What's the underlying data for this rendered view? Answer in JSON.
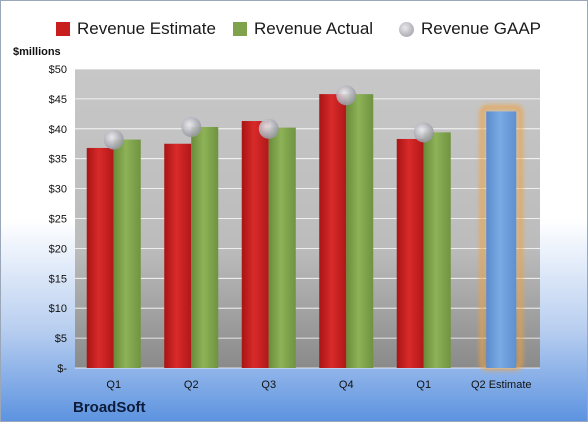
{
  "chart_data": {
    "type": "bar",
    "title": "",
    "ylabel": "$millions",
    "xlabel": "",
    "ylim": [
      0,
      50
    ],
    "y_ticks": [
      "$-",
      "$5",
      "$10",
      "$15",
      "$20",
      "$25",
      "$30",
      "$35",
      "$40",
      "$45",
      "$50"
    ],
    "categories": [
      "Q1",
      "Q2",
      "Q3",
      "Q4",
      "Q1",
      "Q2 Estimate"
    ],
    "series": [
      {
        "name": "Revenue Estimate",
        "type": "bar",
        "color": "#c81e1e",
        "values": [
          36.8,
          37.5,
          41.3,
          45.8,
          38.3,
          null
        ]
      },
      {
        "name": "Revenue Actual",
        "type": "bar",
        "color": "#7fa24a",
        "values": [
          38.2,
          40.3,
          40.2,
          45.8,
          39.4,
          null
        ]
      },
      {
        "name": "Revenue GAAP",
        "type": "scatter",
        "color": "#b4b4bc",
        "values": [
          38.2,
          40.3,
          40.0,
          45.6,
          39.4,
          null
        ]
      },
      {
        "name": "Q2 Estimate",
        "type": "bar",
        "color": "#6a9bd8",
        "highlight": "#f0a040",
        "values": [
          null,
          null,
          null,
          null,
          null,
          42.9
        ]
      }
    ],
    "grid": true,
    "legend_position": "top"
  },
  "legend": [
    {
      "label": "Revenue Estimate",
      "color": "#c81e1e",
      "kind": "square"
    },
    {
      "label": "Revenue Actual",
      "color": "#7fa24a",
      "kind": "square"
    },
    {
      "label": "Revenue GAAP",
      "color": "#b4b4bc",
      "kind": "dot"
    }
  ],
  "footer": {
    "company": "BroadSoft"
  }
}
